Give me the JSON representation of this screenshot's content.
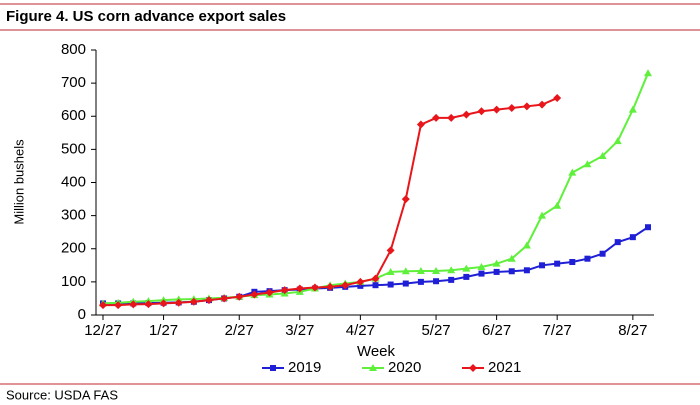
{
  "chart_data": {
    "type": "line",
    "title": "Figure 4. US corn advance export sales",
    "x_label": "Week",
    "y_label": "Million bushels",
    "categories": [
      "12/27",
      null,
      null,
      null,
      "1/27",
      null,
      null,
      null,
      null,
      "2/27",
      null,
      null,
      null,
      "3/27",
      null,
      null,
      null,
      "4/27",
      null,
      null,
      null,
      null,
      "5/27",
      null,
      null,
      null,
      "6/27",
      null,
      null,
      null,
      "7/27",
      null,
      null,
      null,
      null,
      "8/27",
      null
    ],
    "series": [
      {
        "name": "2019",
        "color": "#1f1fd6",
        "marker": "square",
        "values": [
          35,
          35,
          35,
          36,
          37,
          38,
          40,
          45,
          50,
          55,
          70,
          72,
          75,
          77,
          80,
          82,
          85,
          88,
          90,
          92,
          95,
          100,
          102,
          106,
          115,
          125,
          130,
          132,
          135,
          150,
          155,
          160,
          170,
          185,
          220,
          235,
          265
        ]
      },
      {
        "name": "2020",
        "color": "#5ef03a",
        "marker": "triangle",
        "values": [
          35,
          37,
          40,
          42,
          45,
          47,
          48,
          50,
          52,
          55,
          60,
          62,
          65,
          70,
          80,
          90,
          95,
          100,
          110,
          130,
          132,
          133,
          133,
          135,
          140,
          145,
          155,
          170,
          210,
          300,
          330,
          430,
          455,
          480,
          525,
          620,
          730
        ]
      },
      {
        "name": "2021",
        "color": "#e8161b",
        "marker": "diamond",
        "values": [
          30,
          30,
          32,
          33,
          35,
          37,
          40,
          45,
          50,
          55,
          62,
          68,
          75,
          80,
          83,
          85,
          90,
          100,
          110,
          195,
          350,
          575,
          595,
          595,
          605,
          615,
          620,
          625,
          630,
          635,
          655,
          null,
          null,
          null,
          null,
          null,
          null
        ]
      }
    ],
    "ylim": [
      0,
      800
    ],
    "yticks": [
      0,
      100,
      200,
      300,
      400,
      500,
      600,
      700,
      800
    ],
    "grid": false,
    "legend": "bottom",
    "source": "Source: USDA FAS"
  }
}
